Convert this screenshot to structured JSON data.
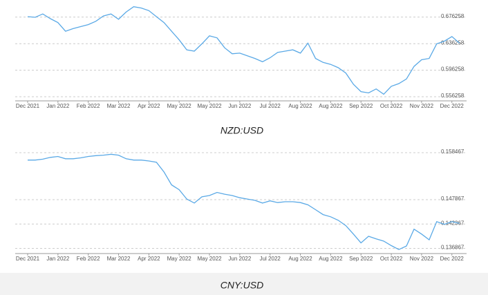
{
  "chart_data": [
    {
      "type": "line",
      "title": "NZD:USD",
      "categories": [
        "Dec 2021",
        null,
        null,
        null,
        "Jan 2022",
        null,
        null,
        null,
        "Feb 2022",
        null,
        null,
        null,
        "Mar 2022",
        null,
        null,
        null,
        "Apr 2022",
        null,
        null,
        null,
        "May 2022",
        null,
        null,
        null,
        "May 2022",
        null,
        null,
        null,
        "Jun 2022",
        null,
        null,
        null,
        "Jul 2022",
        null,
        null,
        null,
        "Aug 2022",
        null,
        null,
        null,
        "Aug 2022",
        null,
        null,
        null,
        "Sep 2022",
        null,
        null,
        null,
        "Oct 2022",
        null,
        null,
        null,
        "Nov 2022",
        null,
        null,
        null,
        "Dec 2022",
        null
      ],
      "values": [
        0.677,
        0.676,
        0.681,
        0.674,
        0.668,
        0.655,
        0.659,
        0.662,
        0.665,
        0.67,
        0.678,
        0.681,
        0.673,
        0.684,
        0.692,
        0.69,
        0.686,
        0.677,
        0.668,
        0.655,
        0.642,
        0.627,
        0.625,
        0.636,
        0.648,
        0.645,
        0.63,
        0.621,
        0.622,
        0.618,
        0.614,
        0.609,
        0.615,
        0.623,
        0.625,
        0.627,
        0.622,
        0.637,
        0.614,
        0.608,
        0.605,
        0.6,
        0.592,
        0.575,
        0.564,
        0.562,
        0.568,
        0.56,
        0.572,
        0.576,
        0.583,
        0.602,
        0.612,
        0.614,
        0.636,
        0.64,
        0.647,
        0.637
      ],
      "color": "#5aa9e6",
      "ylim": [
        0.55,
        0.7
      ],
      "yticks": [
        0.556258,
        0.596258,
        0.636258,
        0.676258
      ],
      "grid": true
    },
    {
      "type": "line",
      "title": "CNY:USD",
      "categories": [
        "Dec 2021",
        null,
        null,
        null,
        "Jan 2022",
        null,
        null,
        null,
        "Feb 2022",
        null,
        null,
        null,
        "Mar 2022",
        null,
        null,
        null,
        "Apr 2022",
        null,
        null,
        null,
        "May 2022",
        null,
        null,
        null,
        "May 2022",
        null,
        null,
        null,
        "Jun 2022",
        null,
        null,
        null,
        "Jul 2022",
        null,
        null,
        null,
        "Aug 2022",
        null,
        null,
        null,
        "Aug 2022",
        null,
        null,
        null,
        "Sep 2022",
        null,
        null,
        null,
        "Oct 2022",
        null,
        null,
        null,
        "Nov 2022",
        null,
        null,
        null,
        "Dec 2022",
        null
      ],
      "values": [
        0.1568,
        0.1568,
        0.157,
        0.1574,
        0.1576,
        0.1571,
        0.1571,
        0.1573,
        0.1576,
        0.1578,
        0.1579,
        0.1581,
        0.1579,
        0.1571,
        0.1568,
        0.1568,
        0.1566,
        0.1563,
        0.1541,
        0.1512,
        0.1501,
        0.148,
        0.1471,
        0.1485,
        0.1488,
        0.1495,
        0.1491,
        0.1488,
        0.1483,
        0.148,
        0.1477,
        0.1471,
        0.1476,
        0.1472,
        0.1474,
        0.1474,
        0.1472,
        0.1467,
        0.1456,
        0.1445,
        0.144,
        0.1432,
        0.142,
        0.1401,
        0.1381,
        0.1396,
        0.139,
        0.1385,
        0.1375,
        0.1366,
        0.1374,
        0.1412,
        0.1401,
        0.1388,
        0.1429,
        0.1423,
        0.1429,
        0.1425
      ],
      "color": "#5aa9e6",
      "ylim": [
        0.1357,
        0.1594
      ],
      "yticks": [
        0.136867,
        0.142367,
        0.147867,
        0.158467
      ],
      "grid": true
    }
  ]
}
